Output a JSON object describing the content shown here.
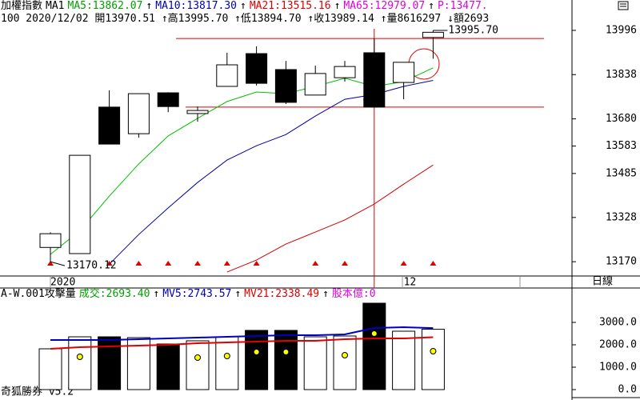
{
  "header": {
    "items": [
      {
        "text": "加權指數",
        "color": "#000000"
      },
      {
        "text": "MA1",
        "color": "#000000"
      },
      {
        "text": "MA5:13862.07",
        "color": "#00a000"
      },
      {
        "text": "↑",
        "color": "#000000"
      },
      {
        "text": "MA10:13817.30",
        "color": "#0000c0"
      },
      {
        "text": "↑",
        "color": "#000000"
      },
      {
        "text": "MA21:13515.16",
        "color": "#e00000"
      },
      {
        "text": "↑",
        "color": "#000000"
      },
      {
        "text": "MA65:12979.07",
        "color": "#e000e0"
      },
      {
        "text": "↑",
        "color": "#000000"
      },
      {
        "text": "P:13477.",
        "color": "#e000e0"
      }
    ],
    "quote": "100 2020/12/02 開13970.51 ↑高13995.70 ↑低13894.70 ↑收13989.14 ↑量8616297 ↓額2693",
    "period": "日線",
    "footer": "奇狐勝券 v5.2"
  },
  "chart_data": [
    {
      "type": "candlestick",
      "categories": [
        "2020",
        null,
        null,
        null,
        null,
        null,
        null,
        null,
        null,
        null,
        null,
        null,
        "12",
        null
      ],
      "open": [
        13221,
        13199,
        13722,
        13627,
        13773,
        13699,
        13796,
        13913,
        13856,
        13765,
        13827,
        13916,
        13810,
        13970.51
      ],
      "high": [
        13275,
        13550,
        13782,
        13770,
        13775,
        13724,
        13916,
        13939,
        13887,
        13870,
        13887,
        13967,
        13882,
        13995.7
      ],
      "low": [
        13170.12,
        13199,
        13590,
        13613,
        13704,
        13670,
        13796,
        13799,
        13733,
        13765,
        13813,
        13722,
        13750,
        13894.7
      ],
      "close": [
        13270,
        13550,
        13590,
        13770,
        13724,
        13710,
        13873,
        13807,
        13739,
        13842,
        13867,
        13722,
        13882,
        13989.14
      ],
      "series": [
        {
          "color": "#00c000",
          "values": [
            13196,
            13281,
            13404,
            13519,
            13619,
            13682,
            13742,
            13776,
            13770,
            13796,
            13825,
            13796,
            13813,
            13862.07
          ]
        },
        {
          "color": "#0000a0",
          "values": [
            null,
            null,
            13161,
            13267,
            13362,
            13453,
            13533,
            13584,
            13624,
            13690,
            13750,
            13767,
            13796,
            13817.3
          ]
        },
        {
          "color": "#d00000",
          "values": [
            null,
            null,
            null,
            null,
            null,
            null,
            13133,
            13176,
            13233,
            13276,
            13319,
            13376,
            13447,
            13515.16
          ]
        }
      ],
      "hlines": [
        13967,
        13722
      ],
      "annotations": [
        "13995.70",
        "13170.12"
      ],
      "ylim": [
        13119,
        14053
      ],
      "yticks": [
        13170,
        13328,
        13485,
        13583,
        13680,
        13838,
        13996
      ]
    },
    {
      "type": "bar",
      "items": [
        {
          "text": "A-W.001攻擊量",
          "color": "#000000"
        },
        {
          "text": "成交:2693.40",
          "color": "#00a000"
        },
        {
          "text": "↑",
          "color": "#000000"
        },
        {
          "text": "MV5:2743.57",
          "color": "#0000c0"
        },
        {
          "text": "↑",
          "color": "#000000"
        },
        {
          "text": "MV21:2338.49",
          "color": "#e00000"
        },
        {
          "text": "↑",
          "color": "#000000"
        },
        {
          "text": "股本億:0",
          "color": "#e000e0"
        }
      ],
      "values": [
        1821,
        2357,
        2357,
        2321,
        2036,
        2179,
        2357,
        2643,
        2643,
        2357,
        2393,
        3857,
        2607,
        2693.4
      ],
      "series": [
        {
          "color": "#0000c0",
          "values": [
            2214,
            2214,
            2214,
            2250,
            2286,
            2321,
            2357,
            2393,
            2429,
            2429,
            2464,
            2750,
            2786,
            2743.57
          ]
        },
        {
          "color": "#e00000",
          "values": [
            1821,
            1893,
            1929,
            1964,
            2000,
            2071,
            2107,
            2143,
            2179,
            2179,
            2250,
            2286,
            2286,
            2338.49
          ]
        }
      ],
      "dots": {
        "color": "#ffff00",
        "values": [
          null,
          1464,
          null,
          null,
          null,
          1429,
          1500,
          1679,
          1679,
          null,
          1536,
          2500,
          null,
          1714
        ]
      },
      "ylim": [
        -357,
        4464
      ],
      "yticks": [
        {
          "value": 0,
          "label": "0.0"
        },
        {
          "value": 1000,
          "label": "1000.0"
        },
        {
          "value": 2000,
          "label": "2000.0"
        },
        {
          "value": 3000,
          "label": "3000.0"
        }
      ]
    }
  ]
}
